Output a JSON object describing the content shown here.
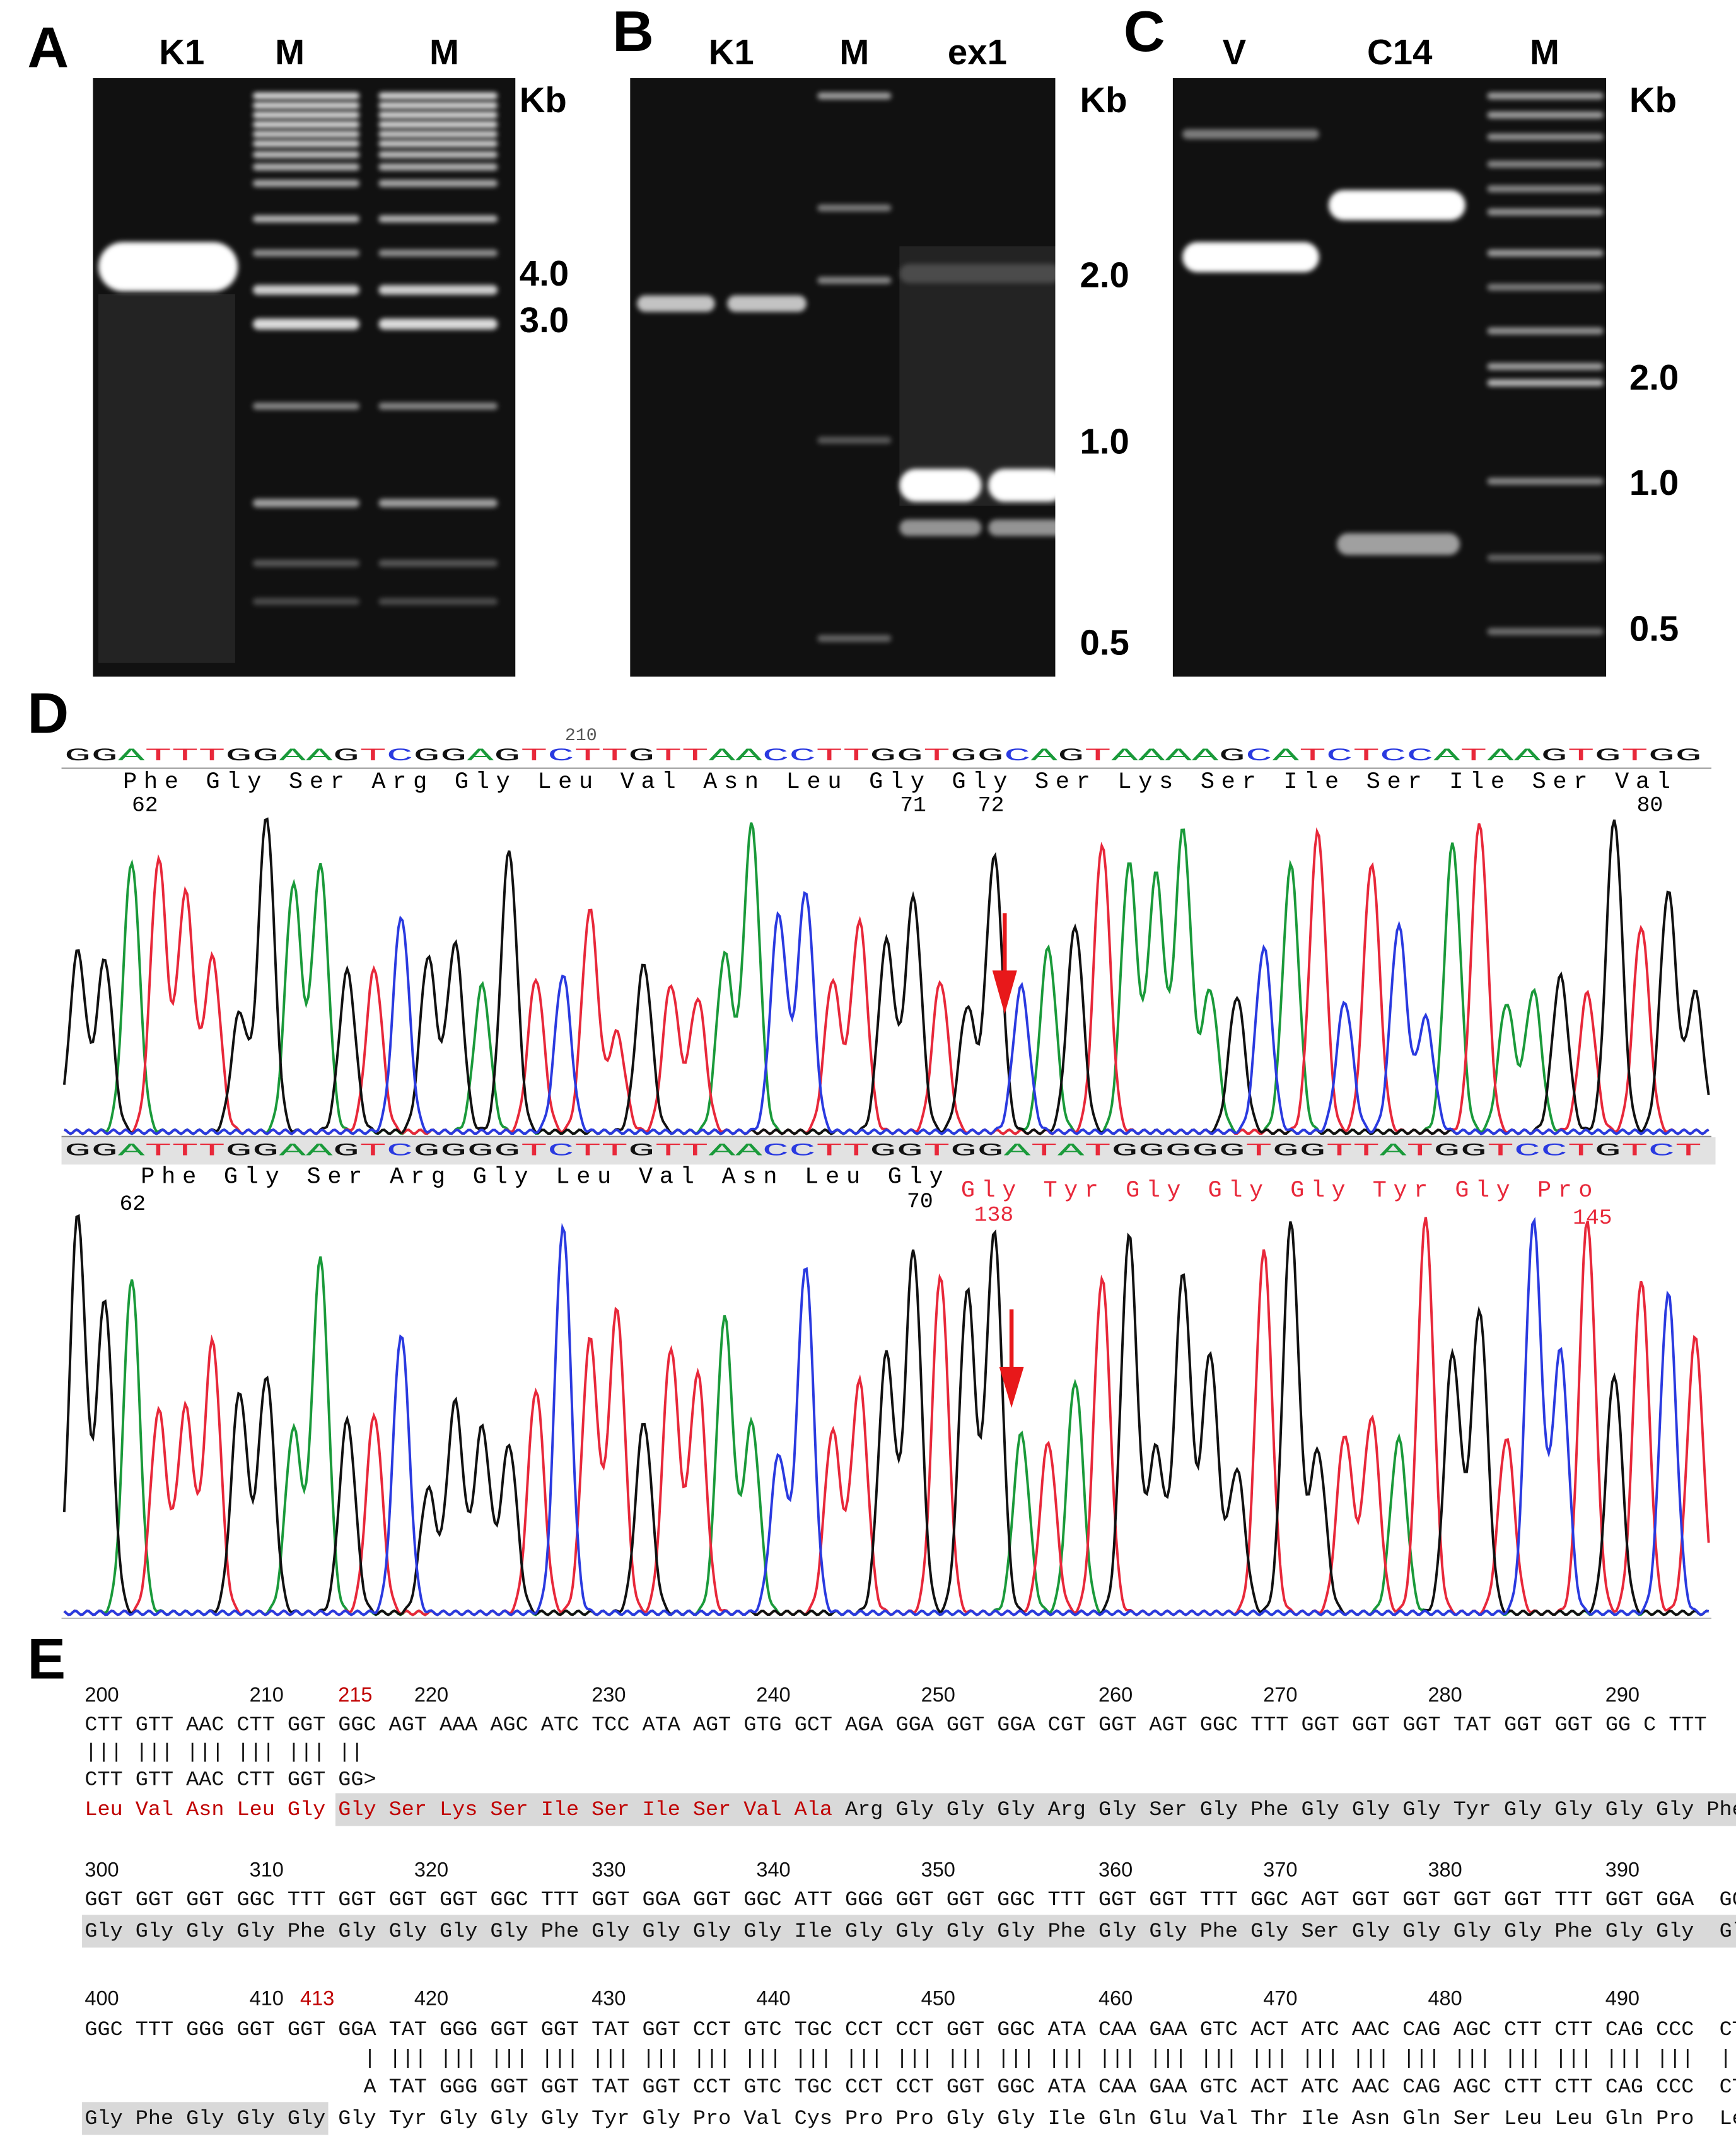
{
  "panels": [
    {
      "letter": "A",
      "lanes": [
        "K1",
        "M",
        "M"
      ],
      "unit": "Kb",
      "sizes": [
        "4.0",
        "3.0"
      ]
    },
    {
      "letter": "B",
      "lanes": [
        "K1",
        "M",
        "ex1"
      ],
      "unit": "Kb",
      "sizes": [
        "2.0",
        "1.0",
        "0.5"
      ]
    },
    {
      "letter": "C",
      "lanes": [
        "V",
        "C14",
        "M"
      ],
      "unit": "Kb",
      "sizes": [
        "2.0",
        "1.0",
        "0.5"
      ]
    }
  ],
  "chromatograms": {
    "letter": "D",
    "top": {
      "position": "210",
      "bases": "GGATTTGGAAGTCGGAGTCTTGTTAACCTTGGTGGCAGTAAAAGCATCTCCATAAGTGTGG",
      "aminos": "Phe Gly Ser Arg Gly Leu Val Asn Leu Gly Gly Ser Lys Ser Ile Ser Ile Ser Val",
      "numbers": [
        "62",
        "71",
        "72",
        "80"
      ]
    },
    "bottom": {
      "bases": "GGATTTGGAAGTCGGGGTCTTGTTAACCTTGGTGGATATGGGGGTGGTTATGGTCCTGTCT",
      "aminos": "Phe Gly Ser Arg Gly Leu Val Asn Leu Gly",
      "numbers": [
        "62",
        "70"
      ],
      "mutant_aminos": "Gly Tyr Gly Gly Gly Tyr Gly Pro",
      "mutant_numbers": [
        "138",
        "145"
      ],
      "mutant_color": "#e8283a"
    }
  },
  "alignment": {
    "letter": "E",
    "blocks": [
      {
        "numbers": [
          {
            "text": "200"
          },
          {
            "text": "210"
          },
          {
            "text": "215",
            "color": "#c00000"
          },
          {
            "text": "220"
          },
          {
            "text": "230"
          },
          {
            "text": "240"
          },
          {
            "text": "250"
          },
          {
            "text": "260"
          },
          {
            "text": "270"
          },
          {
            "text": "280"
          },
          {
            "text": "290"
          }
        ],
        "sequence": "CTT GTT AAC CTT GGT GGC AGT AAA AGC ATC TCC ATA AGT GTG GCT AGA GGA GGT GGA CGT GGT AGT GGC TTT GGT GGT GGT TAT GGT GGT GG C TTT",
        "match": "||| ||| ||| ||| ||| ||",
        "aligned": "CTT GTT AAC CTT GGT GG>",
        "translation": [
          {
            "text": "Leu Val Asn Leu Gly Gly Ser Lys Ser Ile Ser Ile Ser Val Ala",
            "color": "#c00000"
          },
          {
            "text": "Arg Gly Gly Gly Arg Gly Ser Gly Phe Gly Gly Gly Tyr Gly Gly Gly Gly Phe>"
          }
        ]
      },
      {
        "numbers": [
          {
            "text": "300"
          },
          {
            "text": "310"
          },
          {
            "text": "320"
          },
          {
            "text": "330"
          },
          {
            "text": "340"
          },
          {
            "text": "350"
          },
          {
            "text": "360"
          },
          {
            "text": "370"
          },
          {
            "text": "380"
          },
          {
            "text": "390"
          }
        ],
        "sequence": "GGT GGT GGT GGC TTT GGT GGT GGT GGC TTT GGT GGA GGT GGC ATT GGG GGT GGT GGC TTT GGT GGT TTT GGC AGT GGT GGT GGT GGT TTT GGT GGA  GGT",
        "translation": [
          {
            "text": "Gly Gly Gly Gly Phe Gly Gly Gly Gly Phe Gly Gly Gly Gly Ile Gly Gly Gly Gly Phe Gly Gly Phe Gly Ser Gly Gly Gly Gly Phe Gly Gly  Gly>"
          }
        ]
      },
      {
        "numbers": [
          {
            "text": "400"
          },
          {
            "text": "410"
          },
          {
            "text": "413",
            "color": "#c00000"
          },
          {
            "text": "420"
          },
          {
            "text": "430"
          },
          {
            "text": "440"
          },
          {
            "text": "450"
          },
          {
            "text": "460"
          },
          {
            "text": "470"
          },
          {
            "text": "480"
          },
          {
            "text": "490"
          }
        ],
        "sequence": "GGC TTT GGG GGT GGT GGA TAT GGG GGT GGT TAT GGT CCT GTC TGC CCT CCT GGT GGC ATA CAA GAA GTC ACT ATC AAC CAG AGC CTT CTT CAG CCC  CTC>",
        "match": "| ||| ||| ||| ||| ||| ||| ||| ||| ||| ||| ||| ||| ||| ||| ||| ||| ||| ||| ||| ||| ||| ||| ||| ||| ||| |||  |||",
        "aligned": "A TAT GGG GGT GGT TAT GGT CCT GTC TGC CCT CCT GGT GGC ATA CAA GAA GTC ACT ATC AAC CAG AGC CTT CTT CAG CCC  CTC",
        "translation": [
          {
            "text": "Gly Phe Gly Gly Gly Gly Tyr Gly Gly Gly Tyr Gly Pro Val Cys Pro Pro Gly Gly Ile Gln Glu Val Thr Ile Asn Gln Ser Leu Leu Gln Pro  Leu>"
          }
        ]
      }
    ]
  }
}
